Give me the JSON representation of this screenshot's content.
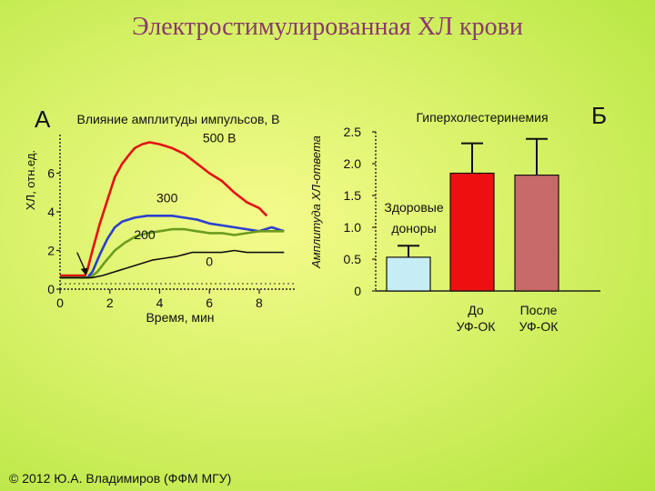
{
  "slide": {
    "title": "Электростимулированная ХЛ крови",
    "footer": "© 2012 Ю.А. Владимиров (ФФМ МГУ)"
  },
  "chart_data": [
    {
      "type": "line",
      "panel": "А",
      "title": "Влияние амплитуды импульсов, В",
      "xlabel": "Время, мин",
      "ylabel": "ХЛ, отн.ед.",
      "xlim": [
        0,
        9.5
      ],
      "ylim": [
        0,
        8
      ],
      "xticks": [
        0,
        2,
        4,
        6,
        8
      ],
      "yticks": [
        0,
        2,
        4,
        6
      ],
      "stimulus_x": 1.05,
      "series": [
        {
          "name": "500 В",
          "color": "#e51212",
          "x": [
            0,
            1.0,
            1.1,
            1.3,
            1.6,
            1.9,
            2.2,
            2.5,
            2.8,
            3.0,
            3.3,
            3.6,
            4.0,
            4.5,
            5.0,
            5.5,
            6.0,
            6.5,
            7.0,
            7.5,
            8.0,
            8.3
          ],
          "y": [
            0.7,
            0.7,
            1.0,
            2.0,
            3.4,
            4.6,
            5.8,
            6.5,
            7.0,
            7.3,
            7.5,
            7.6,
            7.5,
            7.3,
            7.0,
            6.5,
            6.0,
            5.6,
            5.0,
            4.5,
            4.2,
            3.8
          ]
        },
        {
          "name": "300",
          "color": "#2b3fcf",
          "x": [
            0,
            1.1,
            1.3,
            1.6,
            1.9,
            2.2,
            2.5,
            3.0,
            3.5,
            4.0,
            4.5,
            5.0,
            5.5,
            6.0,
            6.5,
            7.0,
            7.5,
            8.0,
            8.5,
            9.0
          ],
          "y": [
            0.6,
            0.6,
            0.9,
            1.8,
            2.6,
            3.2,
            3.5,
            3.7,
            3.8,
            3.8,
            3.8,
            3.7,
            3.6,
            3.4,
            3.3,
            3.2,
            3.1,
            3.0,
            3.2,
            3.0
          ]
        },
        {
          "name": "200",
          "color": "#6b9b1f",
          "x": [
            0,
            1.2,
            1.5,
            1.8,
            2.2,
            2.6,
            3.0,
            3.5,
            4.0,
            4.5,
            5.0,
            5.5,
            6.0,
            6.5,
            7.0,
            7.5,
            8.0,
            8.5,
            9.0
          ],
          "y": [
            0.6,
            0.6,
            0.9,
            1.4,
            2.0,
            2.4,
            2.7,
            2.9,
            3.0,
            3.1,
            3.1,
            3.0,
            2.9,
            2.9,
            2.8,
            2.9,
            3.0,
            3.0,
            3.0
          ]
        },
        {
          "name": "0",
          "color": "#111111",
          "x": [
            0,
            1.3,
            1.7,
            2.2,
            2.7,
            3.2,
            3.7,
            4.2,
            4.7,
            5.0,
            5.3,
            6.0,
            6.5,
            7.0,
            7.5,
            8.0,
            8.5,
            9.0
          ],
          "y": [
            0.6,
            0.6,
            0.7,
            0.9,
            1.1,
            1.3,
            1.5,
            1.6,
            1.7,
            1.8,
            1.9,
            1.9,
            1.9,
            2.0,
            1.9,
            1.9,
            1.9,
            1.9
          ]
        }
      ],
      "labels": [
        {
          "text": "500 В",
          "x": 6.4,
          "y": 7.6
        },
        {
          "text": "300",
          "x": 4.3,
          "y": 4.5
        },
        {
          "text": "200",
          "x": 3.4,
          "y": 2.6
        },
        {
          "text": "0",
          "x": 6.0,
          "y": 1.2
        }
      ]
    },
    {
      "type": "bar",
      "panel": "Б",
      "title": "Гиперхолестеринемия",
      "ylabel": "Амплитуда ХЛ-ответа",
      "ylim": [
        0,
        2.5
      ],
      "yticks": [
        "0",
        "0.5",
        "1.0",
        "1.5",
        "2.0",
        "2.5"
      ],
      "bars": [
        {
          "label": "Здоровые доноры",
          "label_lines": [
            "Здоровые",
            "доноры"
          ],
          "value": 0.53,
          "err": 0.18,
          "color": "#c6ecf5"
        },
        {
          "label": "До УФ-ОК",
          "label_lines": [
            "До",
            "УФ-ОК"
          ],
          "value": 1.85,
          "err": 0.47,
          "color": "#ee1010"
        },
        {
          "label": "После УФ-ОК",
          "label_lines": [
            "После",
            "УФ-ОК"
          ],
          "value": 1.82,
          "err": 0.57,
          "color": "#c86a6a"
        }
      ]
    }
  ]
}
